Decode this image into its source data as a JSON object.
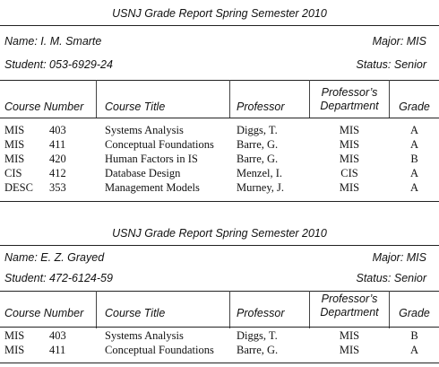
{
  "reports": [
    {
      "title": "USNJ Grade Report Spring Semester 2010",
      "name": "Name: I. M. Smarte",
      "major": "Major: MIS",
      "student": "Student: 053-6929-24",
      "status": "Status: Senior",
      "headers": {
        "course_number": "Course Number",
        "course_title": "Course Title",
        "professor": "Professor",
        "dept_line1": "Professor’s",
        "dept_line2": "Department",
        "grade": "Grade"
      },
      "rows": [
        {
          "dept": "MIS",
          "num": "403",
          "title": "Systems Analysis",
          "prof": "Diggs, T.",
          "prof_dept": "MIS",
          "grade": "A"
        },
        {
          "dept": "MIS",
          "num": "411",
          "title": "Conceptual Foundations",
          "prof": "Barre, G.",
          "prof_dept": "MIS",
          "grade": "A"
        },
        {
          "dept": "MIS",
          "num": "420",
          "title": "Human Factors in IS",
          "prof": "Barre, G.",
          "prof_dept": "MIS",
          "grade": "B"
        },
        {
          "dept": "CIS",
          "num": "412",
          "title": "Database Design",
          "prof": "Menzel, I.",
          "prof_dept": "CIS",
          "grade": "A"
        },
        {
          "dept": "DESC",
          "num": "353",
          "title": "Management Models",
          "prof": "Murney, J.",
          "prof_dept": "MIS",
          "grade": "A"
        }
      ]
    },
    {
      "title": "USNJ Grade Report Spring Semester 2010",
      "name": "Name: E. Z. Grayed",
      "major": "Major: MIS",
      "student": "Student: 472-6124-59",
      "status": "Status: Senior",
      "headers": {
        "course_number": "Course Number",
        "course_title": "Course Title",
        "professor": "Professor",
        "dept_line1": "Professor’s",
        "dept_line2": "Department",
        "grade": "Grade"
      },
      "rows": [
        {
          "dept": "MIS",
          "num": "403",
          "title": "Systems Analysis",
          "prof": "Diggs, T.",
          "prof_dept": "MIS",
          "grade": "B"
        },
        {
          "dept": "MIS",
          "num": "411",
          "title": "Conceptual Foundations",
          "prof": "Barre, G.",
          "prof_dept": "MIS",
          "grade": "A"
        }
      ]
    }
  ]
}
